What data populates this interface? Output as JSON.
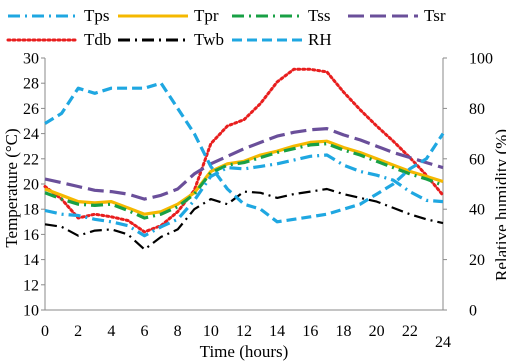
{
  "chart_data": {
    "type": "line",
    "title": "",
    "xlabel": "Time (hours)",
    "ylabel": "Temperature (°C)",
    "y2label": "Relative humidity (%)",
    "xlim": [
      0,
      24
    ],
    "ylim": [
      10,
      30
    ],
    "y2lim": [
      0,
      100
    ],
    "x_ticks": [
      "0",
      "2",
      "4",
      "6",
      "8",
      "10",
      "12",
      "14",
      "16",
      "18",
      "20",
      "22",
      "24"
    ],
    "y_ticks": [
      "10",
      "12",
      "14",
      "16",
      "18",
      "20",
      "22",
      "24",
      "26",
      "28",
      "30"
    ],
    "y2_ticks": [
      "0",
      "20",
      "40",
      "60",
      "80",
      "100"
    ],
    "grid": false,
    "legend_position": "top",
    "legend": [
      {
        "name": "Tps",
        "color": "#1fa7e1",
        "dash": "dashdot"
      },
      {
        "name": "Tpr",
        "color": "#f5b800",
        "dash": "solid"
      },
      {
        "name": "Tss",
        "color": "#18a045",
        "dash": "dashdot"
      },
      {
        "name": "Tsr",
        "color": "#6a4f9a",
        "dash": "longdash"
      },
      {
        "name": "Tdb",
        "color": "#e81e1e",
        "dash": "dot"
      },
      {
        "name": "Twb",
        "color": "#000000",
        "dash": "dashdot"
      },
      {
        "name": "RH",
        "color": "#1fa7e1",
        "dash": "dash"
      }
    ],
    "series": [
      {
        "name": "Tps",
        "axis": "left",
        "color": "#1fa7e1",
        "dash": "dashdot",
        "x": [
          0,
          1,
          2,
          3,
          4,
          5,
          6,
          7,
          8,
          9,
          10,
          11,
          12,
          13,
          14,
          15,
          16,
          17,
          18,
          19,
          20,
          21,
          22,
          23,
          24
        ],
        "y": [
          17.9,
          17.6,
          17.5,
          17.2,
          17.0,
          16.7,
          15.9,
          16.6,
          17.2,
          18.7,
          20.6,
          21.3,
          21.2,
          21.4,
          21.6,
          21.9,
          22.2,
          22.3,
          21.5,
          21.0,
          20.7,
          20.3,
          19.4,
          18.7,
          18.6
        ]
      },
      {
        "name": "Tpr",
        "axis": "left",
        "color": "#f5b800",
        "dash": "solid",
        "x": [
          0,
          1,
          2,
          3,
          4,
          5,
          6,
          7,
          8,
          9,
          10,
          11,
          12,
          13,
          14,
          15,
          16,
          17,
          18,
          19,
          20,
          21,
          22,
          23,
          24
        ],
        "y": [
          19.6,
          19.1,
          18.6,
          18.5,
          18.6,
          18.1,
          17.6,
          17.8,
          18.4,
          19.3,
          21.0,
          21.6,
          21.8,
          22.3,
          22.6,
          23.0,
          23.3,
          23.4,
          22.9,
          22.5,
          22.0,
          21.5,
          21.0,
          20.6,
          20.2
        ]
      },
      {
        "name": "Tss",
        "axis": "left",
        "color": "#18a045",
        "dash": "dashdot",
        "x": [
          0,
          1,
          2,
          3,
          4,
          5,
          6,
          7,
          8,
          9,
          10,
          11,
          12,
          13,
          14,
          15,
          16,
          17,
          18,
          19,
          20,
          21,
          22,
          23,
          24
        ],
        "y": [
          19.3,
          18.8,
          18.4,
          18.3,
          18.4,
          17.9,
          17.3,
          17.6,
          18.2,
          19.2,
          20.9,
          21.5,
          21.7,
          22.1,
          22.5,
          22.8,
          23.1,
          23.2,
          22.7,
          22.3,
          21.8,
          21.3,
          20.8,
          20.4,
          19.9
        ]
      },
      {
        "name": "Tsr",
        "axis": "left",
        "color": "#6a4f9a",
        "dash": "longdash",
        "x": [
          0,
          1,
          2,
          3,
          4,
          5,
          6,
          7,
          8,
          9,
          10,
          11,
          12,
          13,
          14,
          15,
          16,
          17,
          18,
          19,
          20,
          21,
          22,
          23,
          24
        ],
        "y": [
          20.4,
          20.1,
          19.8,
          19.5,
          19.4,
          19.2,
          18.8,
          19.1,
          19.6,
          20.8,
          21.6,
          22.2,
          22.8,
          23.3,
          23.8,
          24.1,
          24.3,
          24.4,
          23.9,
          23.5,
          23.0,
          22.5,
          22.1,
          21.7,
          21.3
        ]
      },
      {
        "name": "Tdb",
        "axis": "left",
        "color": "#e81e1e",
        "dash": "dot",
        "x": [
          0,
          1,
          2,
          3,
          4,
          5,
          6,
          7,
          8,
          9,
          10,
          11,
          12,
          13,
          14,
          15,
          16,
          17,
          18,
          19,
          20,
          21,
          22,
          23,
          24
        ],
        "y": [
          19.8,
          18.8,
          17.3,
          17.6,
          17.4,
          17.1,
          16.2,
          16.7,
          17.8,
          19.5,
          23.2,
          24.6,
          25.1,
          26.4,
          28.1,
          29.1,
          29.1,
          28.9,
          27.3,
          25.9,
          24.6,
          23.4,
          22.1,
          20.7,
          19.1
        ]
      },
      {
        "name": "Twb",
        "axis": "left",
        "color": "#000000",
        "dash": "dashdot",
        "x": [
          0,
          1,
          2,
          3,
          4,
          5,
          6,
          7,
          8,
          9,
          10,
          11,
          12,
          13,
          14,
          15,
          16,
          17,
          18,
          19,
          20,
          21,
          22,
          23,
          24
        ],
        "y": [
          16.8,
          16.6,
          15.9,
          16.3,
          16.4,
          16.0,
          14.8,
          15.8,
          16.4,
          18.0,
          18.8,
          18.4,
          19.4,
          19.3,
          18.9,
          19.2,
          19.4,
          19.6,
          19.2,
          18.9,
          18.6,
          18.1,
          17.6,
          17.2,
          16.9
        ]
      },
      {
        "name": "RH",
        "axis": "right",
        "color": "#1fa7e1",
        "dash": "dash",
        "x": [
          0,
          1,
          2,
          3,
          4,
          5,
          6,
          7,
          8,
          9,
          10,
          11,
          12,
          13,
          14,
          15,
          16,
          17,
          18,
          19,
          20,
          21,
          22,
          23,
          24
        ],
        "y": [
          74,
          78,
          88,
          86,
          88,
          88,
          88,
          90,
          80,
          70,
          57,
          48,
          42,
          40,
          35,
          36,
          37,
          38,
          40,
          42,
          46,
          50,
          56,
          60,
          70
        ]
      }
    ]
  }
}
